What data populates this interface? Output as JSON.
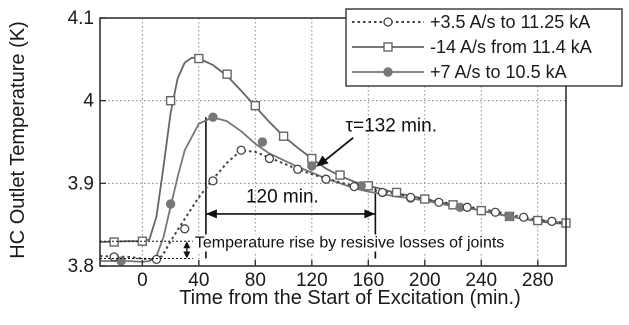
{
  "chart_data": {
    "type": "line",
    "xlabel": "Time from the Start of Excitation (min.)",
    "ylabel": "HC Outlet Temperature (K)",
    "xlim": [
      -30,
      300
    ],
    "ylim": [
      3.8,
      4.1
    ],
    "xticks": [
      0,
      40,
      80,
      120,
      160,
      200,
      240,
      280
    ],
    "yticks": [
      3.8,
      3.9,
      4.0,
      4.1
    ],
    "ytick_labels": [
      "3.8",
      "3.9",
      "4",
      "4.1"
    ],
    "grid": "dotted",
    "legend_position": "top-right",
    "series": [
      {
        "name": "+3.5 A/s to 11.25 kA",
        "line": "dotted",
        "marker": "open-circle",
        "color": "#444444",
        "curve": [
          [
            -30,
            3.812
          ],
          [
            -10,
            3.811
          ],
          [
            0,
            3.809
          ],
          [
            8,
            3.808
          ],
          [
            14,
            3.812
          ],
          [
            20,
            3.83
          ],
          [
            30,
            3.857
          ],
          [
            40,
            3.883
          ],
          [
            50,
            3.905
          ],
          [
            60,
            3.925
          ],
          [
            70,
            3.94
          ],
          [
            80,
            3.938
          ],
          [
            90,
            3.931
          ],
          [
            100,
            3.924
          ],
          [
            110,
            3.917
          ],
          [
            120,
            3.911
          ],
          [
            130,
            3.906
          ],
          [
            140,
            3.901
          ],
          [
            150,
            3.897
          ],
          [
            160,
            3.893
          ],
          [
            170,
            3.89
          ],
          [
            180,
            3.887
          ],
          [
            190,
            3.884
          ],
          [
            200,
            3.881
          ],
          [
            210,
            3.878
          ],
          [
            220,
            3.875
          ],
          [
            230,
            3.872
          ],
          [
            240,
            3.869
          ],
          [
            250,
            3.866
          ],
          [
            260,
            3.862
          ],
          [
            270,
            3.859
          ],
          [
            280,
            3.856
          ],
          [
            290,
            3.854
          ],
          [
            300,
            3.852
          ]
        ],
        "markers": [
          [
            -20,
            3.811
          ],
          [
            10,
            3.808
          ],
          [
            30,
            3.845
          ],
          [
            50,
            3.903
          ],
          [
            70,
            3.94
          ],
          [
            90,
            3.93
          ],
          [
            110,
            3.917
          ],
          [
            130,
            3.905
          ],
          [
            150,
            3.896
          ],
          [
            170,
            3.889
          ],
          [
            190,
            3.883
          ],
          [
            210,
            3.877
          ],
          [
            230,
            3.871
          ],
          [
            250,
            3.865
          ],
          [
            270,
            3.859
          ],
          [
            290,
            3.854
          ]
        ]
      },
      {
        "name": "-14 A/s from 11.4 kA",
        "line": "solid",
        "marker": "open-square",
        "color": "#666666",
        "curve": [
          [
            -30,
            3.829
          ],
          [
            -10,
            3.83
          ],
          [
            0,
            3.83
          ],
          [
            5,
            3.832
          ],
          [
            10,
            3.86
          ],
          [
            15,
            3.92
          ],
          [
            20,
            3.985
          ],
          [
            25,
            4.027
          ],
          [
            30,
            4.046
          ],
          [
            35,
            4.052
          ],
          [
            40,
            4.051
          ],
          [
            50,
            4.043
          ],
          [
            60,
            4.03
          ],
          [
            70,
            4.012
          ],
          [
            80,
            3.993
          ],
          [
            90,
            3.974
          ],
          [
            100,
            3.957
          ],
          [
            110,
            3.943
          ],
          [
            120,
            3.93
          ],
          [
            130,
            3.918
          ],
          [
            140,
            3.909
          ],
          [
            150,
            3.902
          ],
          [
            160,
            3.897
          ],
          [
            170,
            3.893
          ],
          [
            180,
            3.888
          ],
          [
            190,
            3.885
          ],
          [
            200,
            3.881
          ],
          [
            210,
            3.877
          ],
          [
            220,
            3.874
          ],
          [
            230,
            3.871
          ],
          [
            240,
            3.867
          ],
          [
            250,
            3.863
          ],
          [
            260,
            3.86
          ],
          [
            270,
            3.857
          ],
          [
            280,
            3.854
          ],
          [
            290,
            3.852
          ],
          [
            300,
            3.851
          ]
        ],
        "markers": [
          [
            -20,
            3.829
          ],
          [
            0,
            3.83
          ],
          [
            20,
            4.0
          ],
          [
            40,
            4.051
          ],
          [
            60,
            4.032
          ],
          [
            80,
            3.994
          ],
          [
            100,
            3.957
          ],
          [
            120,
            3.93
          ],
          [
            140,
            3.91
          ],
          [
            160,
            3.897
          ],
          [
            180,
            3.889
          ],
          [
            200,
            3.881
          ],
          [
            220,
            3.874
          ],
          [
            240,
            3.867
          ],
          [
            260,
            3.86
          ],
          [
            280,
            3.855
          ],
          [
            300,
            3.852
          ]
        ]
      },
      {
        "name": "+7 A/s to 10.5 kA",
        "line": "solid",
        "marker": "filled-circle",
        "color": "#777777",
        "curve": [
          [
            -30,
            3.806
          ],
          [
            -10,
            3.806
          ],
          [
            0,
            3.805
          ],
          [
            5,
            3.806
          ],
          [
            10,
            3.812
          ],
          [
            15,
            3.835
          ],
          [
            20,
            3.872
          ],
          [
            25,
            3.908
          ],
          [
            30,
            3.94
          ],
          [
            40,
            3.972
          ],
          [
            50,
            3.98
          ],
          [
            60,
            3.975
          ],
          [
            70,
            3.963
          ],
          [
            80,
            3.948
          ],
          [
            90,
            3.936
          ],
          [
            100,
            3.928
          ],
          [
            110,
            3.92
          ],
          [
            120,
            3.913
          ],
          [
            130,
            3.906
          ],
          [
            140,
            3.9
          ],
          [
            150,
            3.894
          ],
          [
            160,
            3.89
          ],
          [
            170,
            3.887
          ],
          [
            180,
            3.884
          ],
          [
            190,
            3.882
          ],
          [
            200,
            3.879
          ],
          [
            210,
            3.876
          ],
          [
            220,
            3.872
          ],
          [
            230,
            3.87
          ],
          [
            240,
            3.867
          ],
          [
            250,
            3.864
          ],
          [
            260,
            3.86
          ],
          [
            270,
            3.857
          ],
          [
            280,
            3.855
          ],
          [
            290,
            3.854
          ],
          [
            300,
            3.852
          ]
        ],
        "markers": [
          [
            -15,
            3.806
          ],
          [
            20,
            3.875
          ],
          [
            50,
            3.98
          ],
          [
            85,
            3.95
          ],
          [
            120,
            3.921
          ],
          [
            155,
            3.897
          ],
          [
            190,
            3.882
          ],
          [
            225,
            3.871
          ],
          [
            260,
            3.86
          ],
          [
            290,
            3.854
          ]
        ]
      }
    ],
    "annotations": [
      {
        "id": "tau",
        "text": "τ=132 min.",
        "arrow_to": [
          123,
          3.92
        ],
        "text_at": [
          155,
          3.96
        ]
      },
      {
        "id": "interval",
        "text": "120 min.",
        "from": [
          45,
          3.863
        ],
        "to": [
          165,
          3.863
        ],
        "text_at": [
          85,
          3.872
        ]
      },
      {
        "id": "rise",
        "text": "Temperature rise by resisive losses of joints",
        "x": 40,
        "y_from": 3.809,
        "y_to": 3.83,
        "text_at": [
          43,
          3.826
        ]
      }
    ],
    "guide_lines": [
      {
        "type": "vertical",
        "x": 45,
        "y_from": 3.809,
        "y_to": 3.98
      },
      {
        "type": "vertical",
        "x": 165,
        "y_from": 3.809,
        "y_to": 3.895
      }
    ]
  }
}
